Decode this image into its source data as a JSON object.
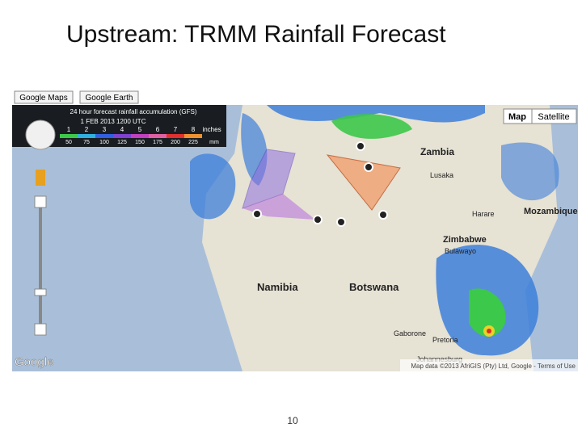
{
  "slide": {
    "title": "Upstream: TRMM Rainfall Forecast",
    "page_number": 10
  },
  "map": {
    "buttons": [
      "Google Maps",
      "Google Earth"
    ],
    "map_types": [
      "Map",
      "Satellite"
    ],
    "legend": {
      "title": "24 hour forecast rainfall accumulation (GFS)",
      "date": "1 FEB 2013 1200 UTC",
      "inches": [
        1,
        2,
        3,
        4,
        5,
        6,
        7,
        8
      ],
      "inches_unit": "inches",
      "mm": [
        50,
        75,
        100,
        125,
        150,
        175,
        200,
        225
      ],
      "mm_unit": "mm"
    },
    "places": [
      "Zambia",
      "Lusaka",
      "Harare",
      "Mozambique",
      "Zimbabwe",
      "Bulawayo",
      "Namibia",
      "Botswana",
      "Gaborone",
      "Pretoria",
      "Johannesburg"
    ],
    "logo": "Google",
    "attribution": "Map data ©2013 AfriGIS (Pty) Ltd, Google - Terms of Use"
  }
}
